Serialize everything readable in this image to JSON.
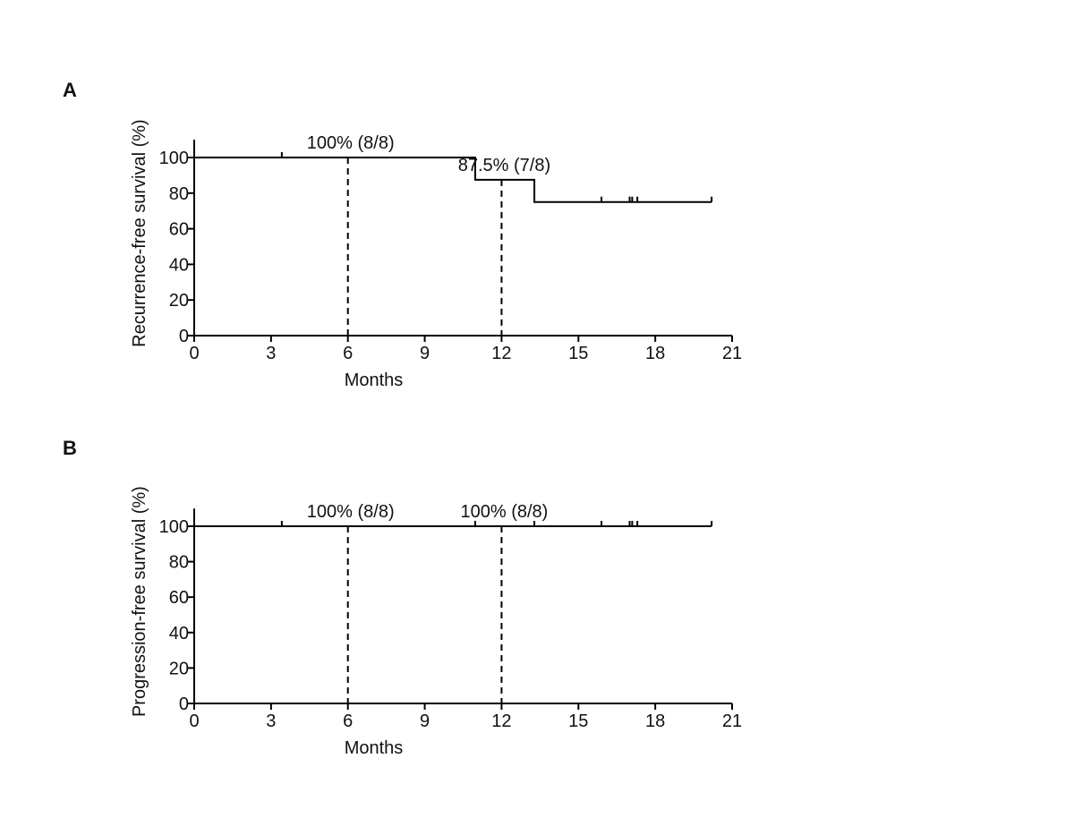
{
  "chart_data": [
    {
      "type": "line",
      "panel_label": "A",
      "title": "",
      "xlabel": "Months",
      "ylabel": "Recurrence-free survival (%)",
      "xlim": [
        0,
        21
      ],
      "ylim": [
        0,
        110
      ],
      "xticks": [
        "0",
        "3",
        "6",
        "9",
        "12",
        "15",
        "18",
        "21"
      ],
      "yticks": [
        "0",
        "20",
        "40",
        "60",
        "80",
        "100"
      ],
      "steps": [
        {
          "x": 0,
          "y": 100
        },
        {
          "x": 10.97,
          "y": 87.5
        },
        {
          "x": 13.28,
          "y": 75
        },
        {
          "x": 20.2,
          "y": 75
        }
      ],
      "censored": [
        3.42,
        15.9,
        17.0,
        17.1,
        17.3,
        20.2
      ],
      "reference_lines": [
        {
          "x": 6,
          "y": 100,
          "label": "100% (8/8)"
        },
        {
          "x": 12,
          "y": 87.5,
          "label": "87.5% (7/8)"
        }
      ],
      "grid": false
    },
    {
      "type": "line",
      "panel_label": "B",
      "title": "",
      "xlabel": "Months",
      "ylabel": "Progression-free survival (%)",
      "xlim": [
        0,
        21
      ],
      "ylim": [
        0,
        110
      ],
      "xticks": [
        "0",
        "3",
        "6",
        "9",
        "12",
        "15",
        "18",
        "21"
      ],
      "yticks": [
        "0",
        "20",
        "40",
        "60",
        "80",
        "100"
      ],
      "steps": [
        {
          "x": 0,
          "y": 100
        },
        {
          "x": 20.2,
          "y": 100
        }
      ],
      "censored": [
        3.42,
        10.97,
        13.28,
        15.9,
        17.0,
        17.1,
        17.3,
        20.2
      ],
      "reference_lines": [
        {
          "x": 6,
          "y": 100,
          "label": "100% (8/8)"
        },
        {
          "x": 12,
          "y": 100,
          "label": "100% (8/8)"
        }
      ],
      "grid": false
    }
  ]
}
